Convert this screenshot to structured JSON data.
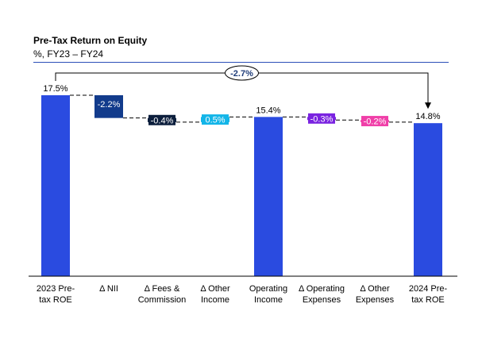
{
  "chart_data": {
    "type": "waterfall",
    "title": "Pre-Tax Return on Equity",
    "subtitle": "%, FY23 – FY24",
    "categories": [
      [
        "2023 Pre-",
        "tax ROE"
      ],
      [
        "Δ NII"
      ],
      [
        "Δ Fees &",
        "Commission"
      ],
      [
        "Δ Other",
        "Income"
      ],
      [
        "Operating",
        "Income"
      ],
      [
        "Δ Operating",
        "Expenses"
      ],
      [
        "Δ Other",
        "Expenses"
      ],
      [
        "2024 Pre-",
        "tax ROE"
      ]
    ],
    "bars": [
      {
        "kind": "total",
        "value": 17.5,
        "label": "17.5%",
        "color": "#2a4be0"
      },
      {
        "kind": "delta",
        "value": -2.2,
        "label": "-2.2%",
        "color": "#123b8c"
      },
      {
        "kind": "delta",
        "value": -0.4,
        "label": "-0.4%",
        "color": "#0d1f3d"
      },
      {
        "kind": "delta",
        "value": 0.5,
        "label": "0.5%",
        "color": "#13b5e8"
      },
      {
        "kind": "total",
        "value": 15.4,
        "label": "15.4%",
        "color": "#2a4be0"
      },
      {
        "kind": "delta",
        "value": -0.3,
        "label": "-0.3%",
        "color": "#7a23e0"
      },
      {
        "kind": "delta",
        "value": -0.2,
        "label": "-0.2%",
        "color": "#f03fa8"
      },
      {
        "kind": "total",
        "value": 14.8,
        "label": "14.8%",
        "color": "#2a4be0"
      }
    ],
    "overall_change": {
      "label": "-2.7%",
      "value": -2.7,
      "from": 0,
      "to": 7
    },
    "ylim": [
      0,
      17.5
    ],
    "grid": false,
    "legend": "none"
  }
}
